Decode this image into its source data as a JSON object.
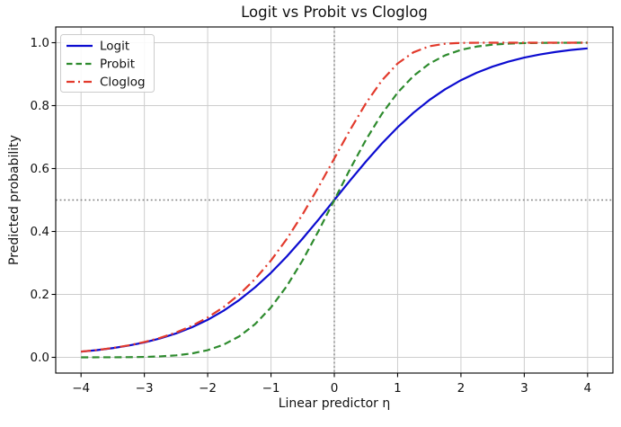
{
  "chart_data": {
    "type": "line",
    "title": "Logit vs Probit vs Cloglog",
    "xlabel": "Linear predictor η",
    "ylabel": "Predicted probability",
    "xlim": [
      -4.4,
      4.4
    ],
    "ylim": [
      -0.05,
      1.05
    ],
    "xticks": [
      -4,
      -3,
      -2,
      -1,
      0,
      1,
      2,
      3,
      4
    ],
    "xtick_labels": [
      "−4",
      "−3",
      "−2",
      "−1",
      "0",
      "1",
      "2",
      "3",
      "4"
    ],
    "yticks": [
      0.0,
      0.2,
      0.4,
      0.6,
      0.8,
      1.0
    ],
    "ytick_labels": [
      "0.0",
      "0.2",
      "0.4",
      "0.6",
      "0.8",
      "1.0"
    ],
    "grid": true,
    "grid_color": "#cdcdcd",
    "background": "#ffffff",
    "legend": {
      "position": "upper left",
      "entries": [
        "Logit",
        "Probit",
        "Cloglog"
      ]
    },
    "reference_lines": [
      {
        "orientation": "vertical",
        "value": 0.0,
        "linestyle": "dotted",
        "color": "#7f7f7f"
      },
      {
        "orientation": "horizontal",
        "value": 0.5,
        "linestyle": "dotted",
        "color": "#7f7f7f"
      }
    ],
    "x": [
      -4,
      -3.75,
      -3.5,
      -3.25,
      -3,
      -2.75,
      -2.5,
      -2.25,
      -2,
      -1.75,
      -1.5,
      -1.25,
      -1,
      -0.75,
      -0.5,
      -0.25,
      0,
      0.25,
      0.5,
      0.75,
      1,
      1.25,
      1.5,
      1.75,
      2,
      2.25,
      2.5,
      2.75,
      3,
      3.25,
      3.5,
      3.75,
      4
    ],
    "series": [
      {
        "name": "Logit",
        "color": "#0c0cd0",
        "linestyle": "solid",
        "linewidth": 2.2,
        "values": [
          0.018,
          0.0229,
          0.0293,
          0.0373,
          0.0474,
          0.0601,
          0.0759,
          0.0953,
          0.1192,
          0.148,
          0.1824,
          0.2227,
          0.2689,
          0.3208,
          0.3775,
          0.4378,
          0.5,
          0.5622,
          0.6225,
          0.6792,
          0.7311,
          0.7773,
          0.8176,
          0.852,
          0.8808,
          0.9047,
          0.9241,
          0.9399,
          0.9526,
          0.9627,
          0.9707,
          0.9771,
          0.982
        ]
      },
      {
        "name": "Probit",
        "color": "#2e8b2e",
        "linestyle": "dashed",
        "linewidth": 2.2,
        "values": [
          0.0,
          0.0001,
          0.0002,
          0.0006,
          0.0013,
          0.003,
          0.0062,
          0.0122,
          0.0228,
          0.0401,
          0.0668,
          0.1056,
          0.1587,
          0.2266,
          0.3085,
          0.4013,
          0.5,
          0.5987,
          0.6915,
          0.7734,
          0.8413,
          0.8944,
          0.9332,
          0.9599,
          0.9772,
          0.9878,
          0.9938,
          0.997,
          0.9987,
          0.9994,
          0.9998,
          0.9999,
          1.0
        ]
      },
      {
        "name": "Cloglog",
        "color": "#e23a2c",
        "linestyle": "dashdot",
        "linewidth": 2.2,
        "values": [
          0.0182,
          0.0232,
          0.0297,
          0.038,
          0.0486,
          0.0619,
          0.0788,
          0.1,
          0.1266,
          0.1595,
          0.2,
          0.2491,
          0.3078,
          0.3765,
          0.4547,
          0.541,
          0.6321,
          0.7231,
          0.8077,
          0.8796,
          0.934,
          0.9695,
          0.9887,
          0.9968,
          0.9994,
          0.9999,
          1.0,
          1.0,
          1.0,
          1.0,
          1.0,
          1.0,
          1.0
        ]
      }
    ]
  }
}
